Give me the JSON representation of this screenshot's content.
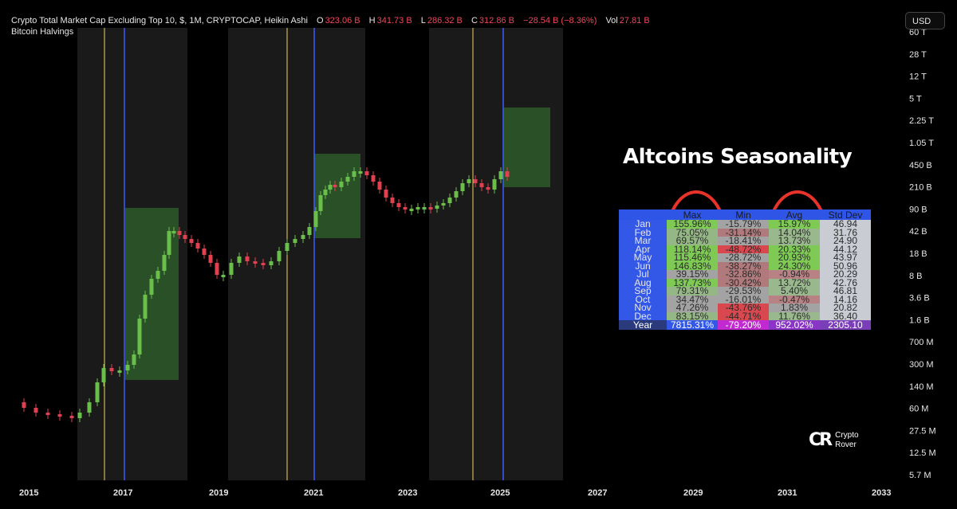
{
  "header": {
    "symbol": "Crypto Total Market Cap Excluding Top 10, $, 1M, CRYPTOCAP, Heikin Ashi",
    "o_label": "O",
    "o_value": "323.06 B",
    "h_label": "H",
    "h_value": "341.73 B",
    "l_label": "L",
    "l_value": "286.32 B",
    "c_label": "C",
    "c_value": "312.86 B",
    "change": "−28.54 B (−8.36%)",
    "vol_label": "Vol",
    "vol_value": "27.81 B",
    "indicator": "Bitcoin Halvings"
  },
  "currency_button": "USD",
  "overlay_title": "Altcoins Seasonality",
  "brand": {
    "line1": "Crypto",
    "line2": "Rover",
    "mark": "CR"
  },
  "colors": {
    "background": "#000000",
    "up_candle": "#6abf4b",
    "down_candle": "#e0404f",
    "halving_line": "#f2d15c",
    "cycle_line": "#3c5bff",
    "shade": "#1a1a1a",
    "green_box": "#2e5a2a",
    "table_header": "#2f55e6",
    "circle": "#e8332b"
  },
  "table": {
    "headers": [
      "Max",
      "Min",
      "Avg",
      "Std Dev"
    ],
    "rows": [
      {
        "month": "Jan",
        "max": "155.96%",
        "min": "-15.79%",
        "avg": "15.97%",
        "std": "46.94"
      },
      {
        "month": "Feb",
        "max": "75.05%",
        "min": "-31.14%",
        "avg": "14.04%",
        "std": "31.76"
      },
      {
        "month": "Mar",
        "max": "69.57%",
        "min": "-18.41%",
        "avg": "13.73%",
        "std": "24.90"
      },
      {
        "month": "Apr",
        "max": "118.14%",
        "min": "-48.72%",
        "avg": "20.33%",
        "std": "44.12"
      },
      {
        "month": "May",
        "max": "115.46%",
        "min": "-28.72%",
        "avg": "20.93%",
        "std": "43.97"
      },
      {
        "month": "Jun",
        "max": "146.83%",
        "min": "-38.27%",
        "avg": "24.30%",
        "std": "50.96"
      },
      {
        "month": "Jul",
        "max": "39.15%",
        "min": "-32.86%",
        "avg": "-0.94%",
        "std": "20.29"
      },
      {
        "month": "Aug",
        "max": "137.73%",
        "min": "-30.42%",
        "avg": "13.72%",
        "std": "42.76"
      },
      {
        "month": "Sep",
        "max": "79.31%",
        "min": "-29.53%",
        "avg": "5.40%",
        "std": "46.81"
      },
      {
        "month": "Oct",
        "max": "34.47%",
        "min": "-16.01%",
        "avg": "-0.47%",
        "std": "14.16"
      },
      {
        "month": "Nov",
        "max": "47.26%",
        "min": "-43.76%",
        "avg": "1.83%",
        "std": "20.82"
      },
      {
        "month": "Dec",
        "max": "83.15%",
        "min": "-44.71%",
        "avg": "11.76%",
        "std": "36.40"
      }
    ],
    "year_row": {
      "month": "Year",
      "max": "7815.31%",
      "min": "-79.20%",
      "avg": "952.02%",
      "std": "2305.10"
    }
  },
  "chart_data": {
    "type": "candlestick",
    "scale": "log",
    "x_axis_labels": [
      "2015",
      "2017",
      "2019",
      "2021",
      "2023",
      "2025",
      "2027",
      "2029",
      "2031",
      "2033"
    ],
    "y_axis_labels": [
      "60 T",
      "28 T",
      "12 T",
      "5 T",
      "2.25 T",
      "1.05 T",
      "450 B",
      "210 B",
      "90 B",
      "42 B",
      "18 B",
      "8 B",
      "3.6 B",
      "1.6 B",
      "700 M",
      "300 M",
      "140 M",
      "60 M",
      "27.5 M",
      "12.5 M",
      "5.7 M"
    ],
    "series": [
      {
        "period": "2015-2016",
        "approx_close_usd": [
          "60M",
          "50M",
          "40M",
          "45M"
        ]
      },
      {
        "period": "2016-2017",
        "approx_close_usd": [
          "60M",
          "140M",
          "300M",
          "600M",
          "2B",
          "10B",
          "40B"
        ]
      },
      {
        "period": "2018",
        "approx_close_usd": [
          "45B",
          "30B",
          "15B",
          "10B"
        ]
      },
      {
        "period": "2019-2020",
        "approx_close_usd": [
          "10B",
          "14B",
          "10B",
          "15B",
          "25B"
        ]
      },
      {
        "period": "2021",
        "approx_close_usd": [
          "50B",
          "150B",
          "200B",
          "350B",
          "450B"
        ]
      },
      {
        "period": "2022-2023",
        "approx_close_usd": [
          "350B",
          "200B",
          "100B",
          "90B",
          "100B"
        ]
      },
      {
        "period": "2024-2025",
        "approx_close_usd": [
          "200B",
          "350B",
          "250B",
          "380B",
          "312.86B"
        ]
      }
    ],
    "halvings": [
      "2016",
      "2020",
      "2024"
    ],
    "legend": "top-left"
  }
}
